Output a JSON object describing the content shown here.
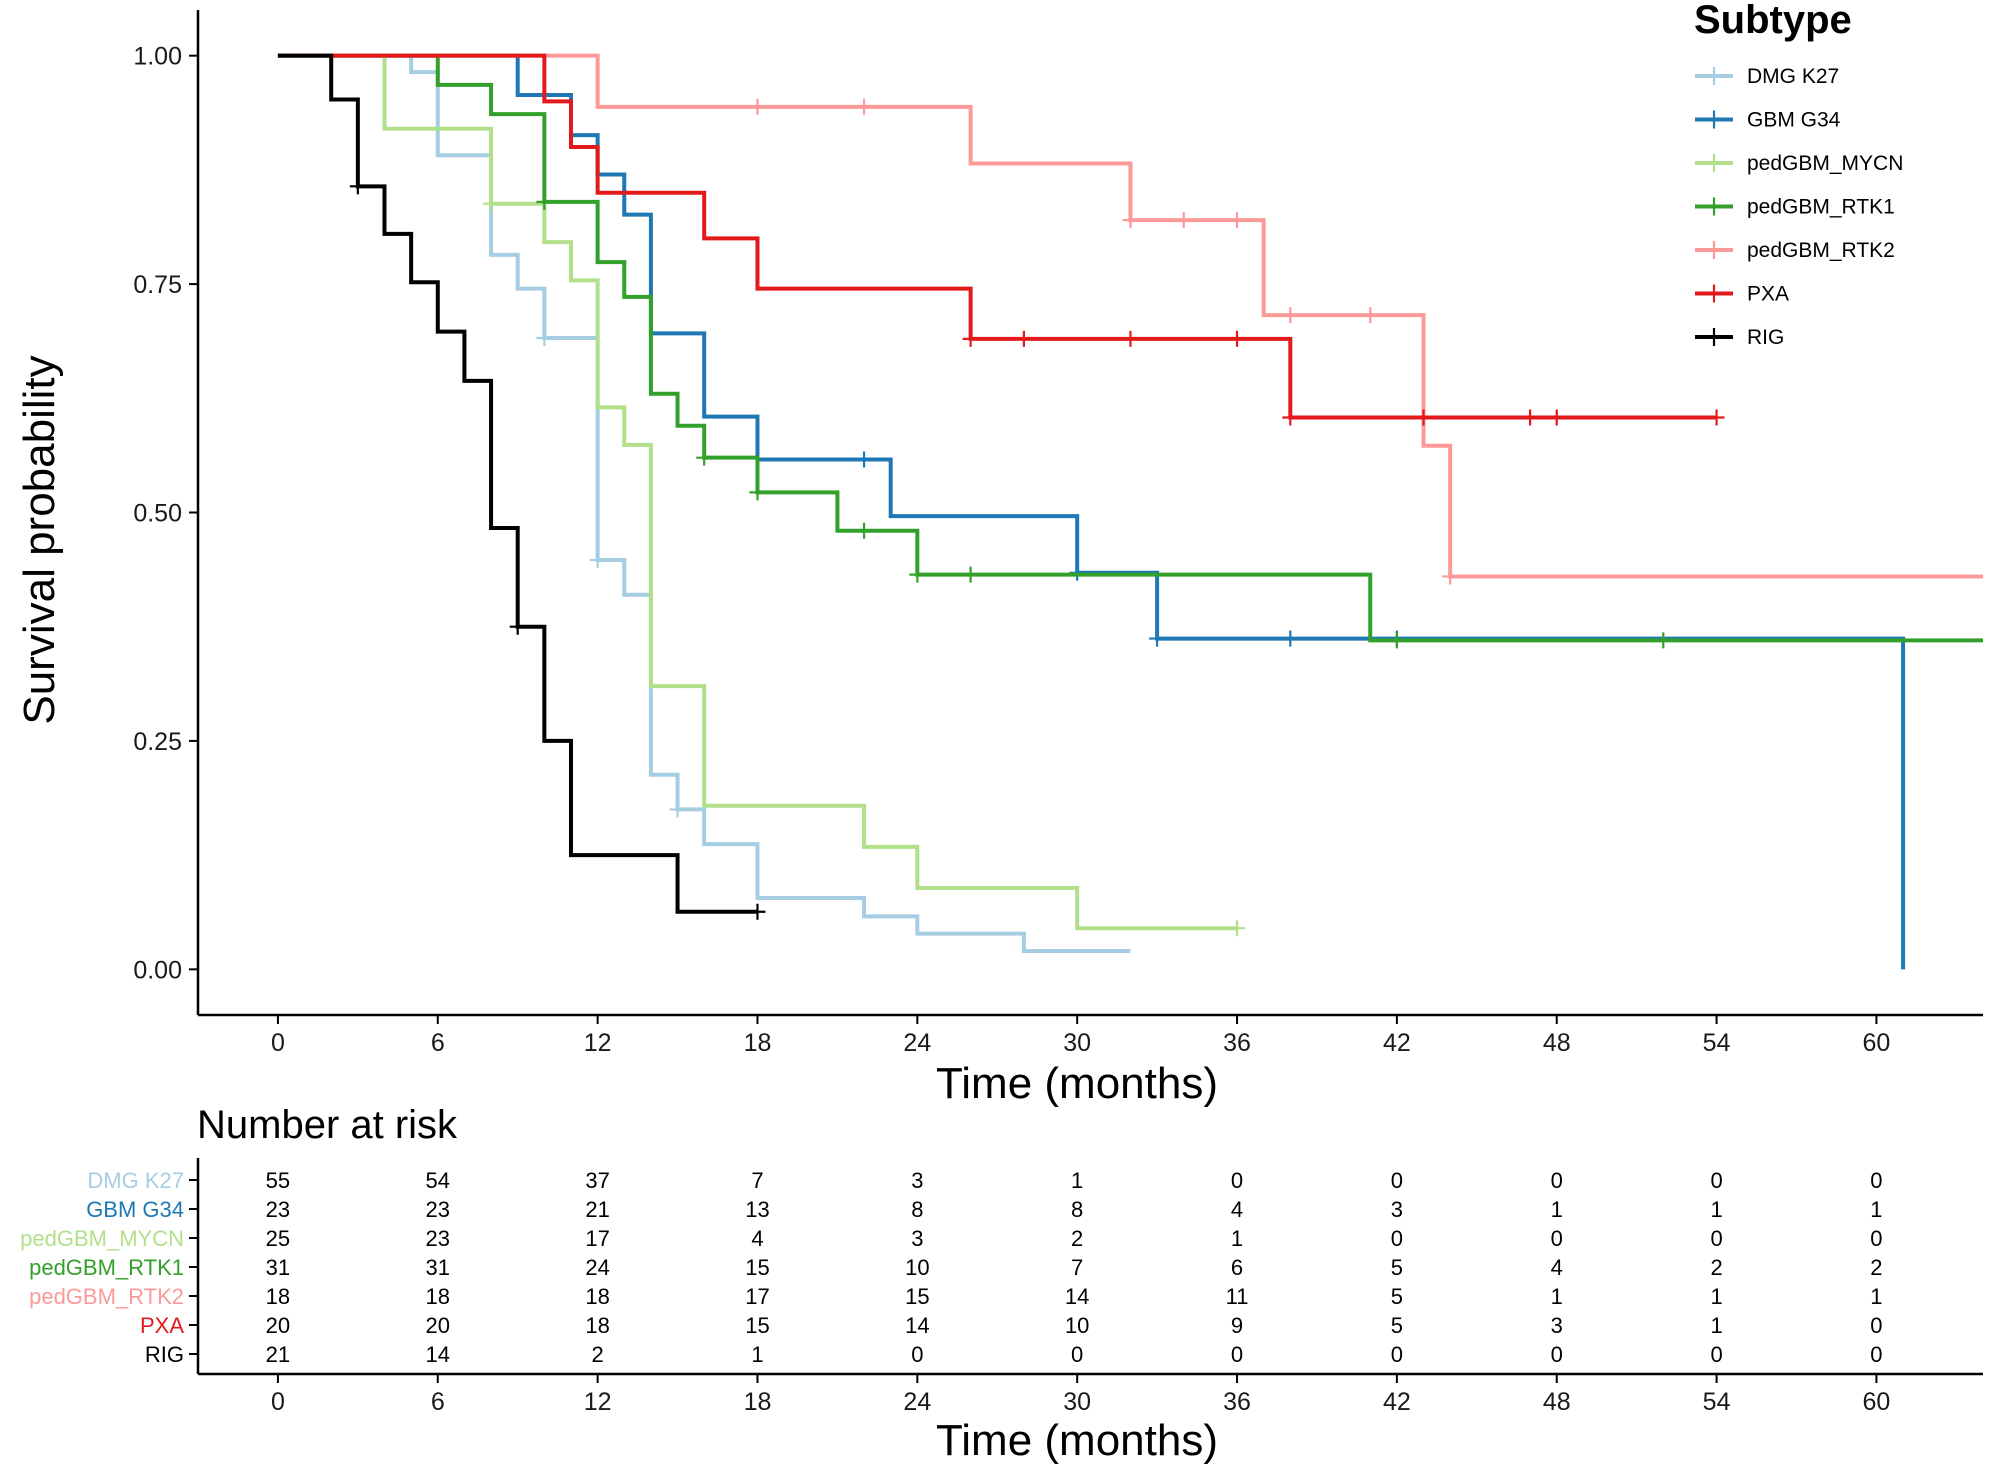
{
  "chart_data": {
    "type": "line",
    "subtype": "kaplan-meier",
    "title": "",
    "ylabel": "Survival probability",
    "xlabel": "Time (months)",
    "xlim": [
      -3,
      64
    ],
    "ylim": [
      -0.05,
      1.05
    ],
    "x_ticks": [
      0,
      6,
      12,
      18,
      24,
      30,
      36,
      42,
      48,
      54,
      60
    ],
    "y_ticks": [
      0,
      0.25,
      0.5,
      0.75,
      1.0
    ],
    "y_tick_labels": [
      "0.00",
      "0.25",
      "0.50",
      "0.75",
      "1.00"
    ],
    "legend_title": "Subtype",
    "legend_position": "top-right",
    "series": [
      {
        "name": "DMG K27",
        "color": "#a6cee3",
        "steps": [
          [
            0,
            1
          ],
          [
            5,
            0.982
          ],
          [
            6,
            0.891
          ],
          [
            8,
            0.782
          ],
          [
            9,
            0.745
          ],
          [
            10,
            0.691
          ],
          [
            12,
            0.448
          ],
          [
            13,
            0.41
          ],
          [
            14,
            0.213
          ],
          [
            15,
            0.175
          ],
          [
            16,
            0.137
          ],
          [
            18,
            0.078
          ],
          [
            22,
            0.058
          ],
          [
            24,
            0.039
          ],
          [
            28,
            0.02
          ],
          [
            32,
            0.02
          ]
        ],
        "censors": [
          [
            10,
            0.691
          ],
          [
            12,
            0.448
          ],
          [
            15,
            0.175
          ]
        ]
      },
      {
        "name": "GBM G34",
        "color": "#1f78b4",
        "steps": [
          [
            0,
            1
          ],
          [
            9,
            0.957
          ],
          [
            11,
            0.913
          ],
          [
            12,
            0.87
          ],
          [
            13,
            0.826
          ],
          [
            14,
            0.783
          ],
          [
            14,
            0.696
          ],
          [
            16,
            0.605
          ],
          [
            18,
            0.558
          ],
          [
            23,
            0.496
          ],
          [
            30,
            0.434
          ],
          [
            33,
            0.362
          ],
          [
            61,
            0.362
          ],
          [
            61,
            0
          ]
        ],
        "censors": [
          [
            22,
            0.558
          ],
          [
            30,
            0.434
          ],
          [
            33,
            0.362
          ],
          [
            38,
            0.362
          ],
          [
            42,
            0.362
          ]
        ]
      },
      {
        "name": "pedGBM_MYCN",
        "color": "#b2df8a",
        "steps": [
          [
            0,
            1
          ],
          [
            4,
            0.92
          ],
          [
            8,
            0.838
          ],
          [
            10,
            0.796
          ],
          [
            11,
            0.754
          ],
          [
            12,
            0.615
          ],
          [
            13,
            0.574
          ],
          [
            14,
            0.31
          ],
          [
            16,
            0.179
          ],
          [
            22,
            0.134
          ],
          [
            24,
            0.089
          ],
          [
            30,
            0.045
          ],
          [
            36,
            0.045
          ]
        ],
        "censors": [
          [
            8,
            0.838
          ],
          [
            36,
            0.045
          ]
        ]
      },
      {
        "name": "pedGBM_RTK1",
        "color": "#33a02c",
        "steps": [
          [
            0,
            1
          ],
          [
            6,
            0.968
          ],
          [
            8,
            0.936
          ],
          [
            10,
            0.84
          ],
          [
            12,
            0.774
          ],
          [
            13,
            0.736
          ],
          [
            14,
            0.63
          ],
          [
            15,
            0.595
          ],
          [
            16,
            0.56
          ],
          [
            18,
            0.522
          ],
          [
            21,
            0.48
          ],
          [
            24,
            0.432
          ],
          [
            41,
            0.36
          ],
          [
            64,
            0.36
          ]
        ],
        "censors": [
          [
            10,
            0.84
          ],
          [
            16,
            0.56
          ],
          [
            18,
            0.522
          ],
          [
            22,
            0.48
          ],
          [
            24,
            0.432
          ],
          [
            26,
            0.432
          ],
          [
            42,
            0.36
          ],
          [
            52,
            0.36
          ]
        ]
      },
      {
        "name": "pedGBM_RTK2",
        "color": "#fb9a99",
        "steps": [
          [
            0,
            1
          ],
          [
            12,
            0.944
          ],
          [
            26,
            0.882
          ],
          [
            32,
            0.82
          ],
          [
            37,
            0.716
          ],
          [
            43,
            0.573
          ],
          [
            44,
            0.43
          ],
          [
            64,
            0.43
          ]
        ],
        "censors": [
          [
            18,
            0.944
          ],
          [
            22,
            0.944
          ],
          [
            32,
            0.82
          ],
          [
            34,
            0.82
          ],
          [
            36,
            0.82
          ],
          [
            38,
            0.716
          ],
          [
            41,
            0.716
          ],
          [
            44,
            0.43
          ]
        ]
      },
      {
        "name": "PXA",
        "color": "#e31a1c",
        "steps": [
          [
            0,
            1
          ],
          [
            10,
            0.95
          ],
          [
            11,
            0.9
          ],
          [
            12,
            0.85
          ],
          [
            16,
            0.8
          ],
          [
            18,
            0.745
          ],
          [
            26,
            0.69
          ],
          [
            38,
            0.604
          ],
          [
            54,
            0.604
          ]
        ],
        "censors": [
          [
            26,
            0.69
          ],
          [
            28,
            0.69
          ],
          [
            32,
            0.69
          ],
          [
            36,
            0.69
          ],
          [
            38,
            0.604
          ],
          [
            43,
            0.604
          ],
          [
            47,
            0.604
          ],
          [
            48,
            0.604
          ],
          [
            54,
            0.604
          ]
        ]
      },
      {
        "name": "RIG",
        "color": "#000000",
        "steps": [
          [
            0,
            1
          ],
          [
            2,
            0.952
          ],
          [
            3,
            0.857
          ],
          [
            4,
            0.805
          ],
          [
            5,
            0.752
          ],
          [
            6,
            0.698
          ],
          [
            7,
            0.644
          ],
          [
            8,
            0.483
          ],
          [
            9,
            0.375
          ],
          [
            10,
            0.25
          ],
          [
            11,
            0.125
          ],
          [
            15,
            0.063
          ],
          [
            18,
            0.063
          ]
        ],
        "censors": [
          [
            3,
            0.857
          ],
          [
            9,
            0.375
          ],
          [
            18,
            0.063
          ]
        ]
      }
    ]
  },
  "risk_table": {
    "title": "Number at risk",
    "xlabel": "Time (months)",
    "times": [
      0,
      6,
      12,
      18,
      24,
      30,
      36,
      42,
      48,
      54,
      60
    ],
    "rows": [
      {
        "name": "DMG K27",
        "color": "#a6cee3",
        "counts": [
          "55",
          "54",
          "37",
          "7",
          "3",
          "1",
          "0",
          "0",
          "0",
          "0",
          "0"
        ]
      },
      {
        "name": "GBM G34",
        "color": "#1f78b4",
        "counts": [
          "23",
          "23",
          "21",
          "13",
          "8",
          "8",
          "4",
          "3",
          "1",
          "1",
          "1"
        ]
      },
      {
        "name": "pedGBM_MYCN",
        "color": "#b2df8a",
        "counts": [
          "25",
          "23",
          "17",
          "4",
          "3",
          "2",
          "1",
          "0",
          "0",
          "0",
          "0"
        ]
      },
      {
        "name": "pedGBM_RTK1",
        "color": "#33a02c",
        "counts": [
          "31",
          "31",
          "24",
          "15",
          "10",
          "7",
          "6",
          "5",
          "4",
          "2",
          "2"
        ]
      },
      {
        "name": "pedGBM_RTK2",
        "color": "#fb9a99",
        "counts": [
          "18",
          "18",
          "18",
          "17",
          "15",
          "14",
          "11",
          "5",
          "1",
          "1",
          "1"
        ]
      },
      {
        "name": "PXA",
        "color": "#e31a1c",
        "counts": [
          "20",
          "20",
          "18",
          "15",
          "14",
          "10",
          "9",
          "5",
          "3",
          "1",
          "0"
        ]
      },
      {
        "name": "RIG",
        "color": "#000000",
        "counts": [
          "21",
          "14",
          "2",
          "1",
          "0",
          "0",
          "0",
          "0",
          "0",
          "0",
          "0"
        ]
      }
    ]
  }
}
